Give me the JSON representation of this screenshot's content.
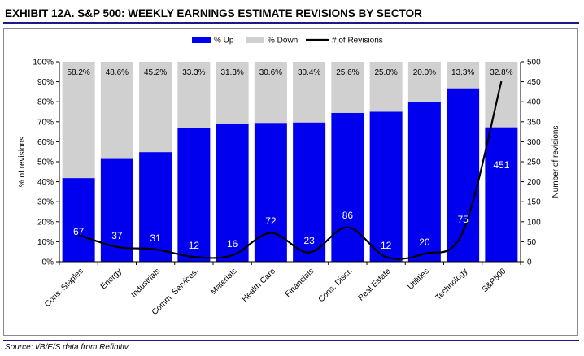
{
  "header": {
    "title": "EXHIBIT 12A.  S&P 500: WEEKLY EARNINGS ESTIMATE REVISIONS BY SECTOR"
  },
  "footer": {
    "source": "Source: I/B/E/S data from Refinitiv"
  },
  "colors": {
    "up": "#0000ee",
    "down": "#d0d0d0",
    "line": "#000000",
    "rule": "#1a1a8c"
  },
  "chart_data": {
    "type": "bar",
    "stacked": true,
    "categories": [
      "Cons. Staples",
      "Energy",
      "Industrials",
      "Comm. Services.",
      "Materials",
      "Health Care",
      "Financials",
      "Cons. Discr.",
      "Real Estate",
      "Utilities",
      "Technology",
      "S&P500"
    ],
    "series": [
      {
        "name": "% Up",
        "type": "bar",
        "axis": "left",
        "values": [
          41.8,
          51.4,
          54.8,
          66.7,
          68.7,
          69.4,
          69.6,
          74.4,
          75.0,
          80.0,
          86.7,
          67.2
        ]
      },
      {
        "name": "% Down",
        "type": "bar",
        "axis": "left",
        "values": [
          58.2,
          48.6,
          45.2,
          33.3,
          31.3,
          30.6,
          30.4,
          25.6,
          25.0,
          20.0,
          13.3,
          32.8
        ]
      },
      {
        "name": "# of Revisions",
        "type": "line",
        "axis": "right",
        "values": [
          67,
          37,
          31,
          12,
          16,
          72,
          23,
          86,
          12,
          20,
          75,
          451
        ]
      }
    ],
    "down_labels": [
      "58.2%",
      "48.6%",
      "45.2%",
      "33.3%",
      "31.3%",
      "30.6%",
      "30.4%",
      "25.6%",
      "25.0%",
      "20.0%",
      "13.3%",
      "32.8%"
    ],
    "ylabel": "% of revisions",
    "ylabel_right": "Number of revisions",
    "ylim": [
      0,
      100
    ],
    "ylim_right": [
      0,
      500
    ],
    "yticks": [
      "0%",
      "10%",
      "20%",
      "30%",
      "40%",
      "50%",
      "60%",
      "70%",
      "80%",
      "90%",
      "100%"
    ],
    "yticks_right": [
      "0",
      "50",
      "100",
      "150",
      "200",
      "250",
      "300",
      "350",
      "400",
      "450",
      "500"
    ],
    "grid": false,
    "legend_position": "top-center"
  }
}
